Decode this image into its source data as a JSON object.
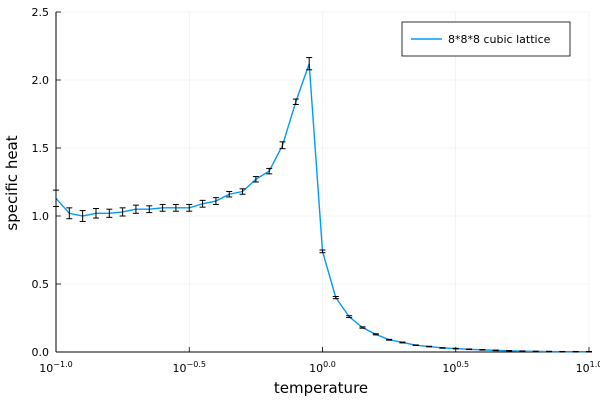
{
  "chart_data": {
    "type": "line",
    "title": "",
    "xlabel": "temperature",
    "ylabel": "specific heat",
    "xscale": "log10",
    "xlim": [
      0.1,
      10
    ],
    "ylim": [
      0,
      2.5
    ],
    "x_ticks": [
      {
        "value": 0.1,
        "base": "10",
        "exp": "−1.0"
      },
      {
        "value": 0.31623,
        "base": "10",
        "exp": "−0.5"
      },
      {
        "value": 1.0,
        "base": "10",
        "exp": "0.0"
      },
      {
        "value": 3.16228,
        "base": "10",
        "exp": "0.5"
      },
      {
        "value": 10,
        "base": "10",
        "exp": "1.0"
      }
    ],
    "y_ticks": [
      "0.0",
      "0.5",
      "1.0",
      "1.5",
      "2.0",
      "2.5"
    ],
    "grid": true,
    "legend_position": "top-right",
    "series": [
      {
        "name": "8*8*8 cubic lattice",
        "color": "#009af9",
        "x": [
          0.1,
          0.1122,
          0.1259,
          0.1413,
          0.1585,
          0.1778,
          0.1995,
          0.2239,
          0.2512,
          0.2818,
          0.3162,
          0.3548,
          0.3981,
          0.4467,
          0.5012,
          0.5623,
          0.631,
          0.7079,
          0.7943,
          0.8913,
          1.0,
          1.122,
          1.2589,
          1.4125,
          1.5849,
          1.7783,
          1.9953,
          2.2387,
          2.5119,
          2.8184,
          3.1623,
          3.5481,
          3.9811,
          4.4668,
          5.0119,
          5.6234,
          6.3096,
          7.0795,
          7.9433,
          8.9125,
          10.0
        ],
        "y": [
          1.13,
          1.02,
          1.0,
          1.02,
          1.02,
          1.03,
          1.05,
          1.05,
          1.06,
          1.06,
          1.06,
          1.09,
          1.11,
          1.16,
          1.18,
          1.27,
          1.33,
          1.52,
          1.84,
          2.12,
          0.74,
          0.4,
          0.26,
          0.18,
          0.13,
          0.09,
          0.07,
          0.05,
          0.04,
          0.03,
          0.025,
          0.02,
          0.016,
          0.012,
          0.009,
          0.006,
          0.004,
          0.003,
          0.002,
          0.002,
          0.002
        ],
        "yerr": [
          0.06,
          0.04,
          0.04,
          0.035,
          0.03,
          0.03,
          0.03,
          0.025,
          0.025,
          0.025,
          0.025,
          0.025,
          0.025,
          0.02,
          0.02,
          0.02,
          0.02,
          0.025,
          0.02,
          0.045,
          0.01,
          0.008,
          0.007,
          0.005,
          0.004,
          0.003,
          0.003,
          0.002,
          0.002,
          0.002,
          0.002,
          0.002,
          0.002,
          0.002,
          0.002,
          0.002,
          0.002,
          0.002,
          0.002,
          0.002,
          0.002
        ]
      }
    ]
  }
}
